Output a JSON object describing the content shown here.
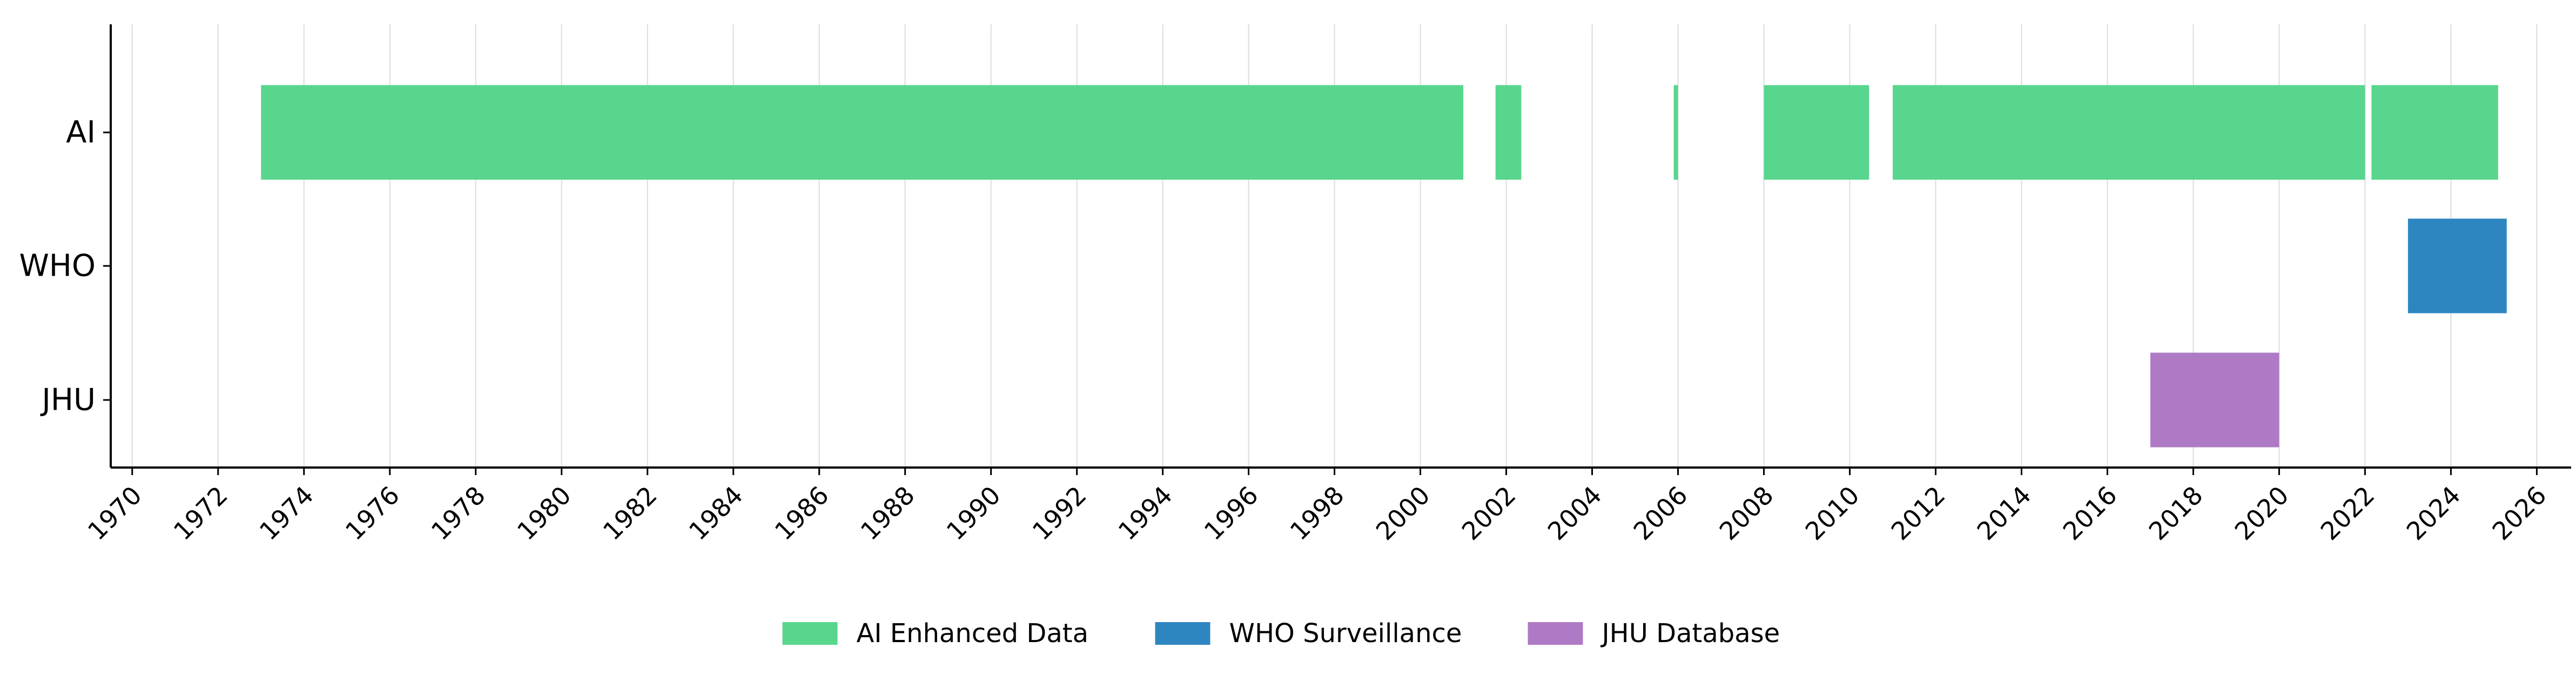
{
  "chart_data": {
    "type": "bar",
    "orientation": "horizontal-timeline",
    "categories": [
      "AI",
      "WHO",
      "JHU"
    ],
    "xlim": [
      1969.5,
      2026.8
    ],
    "x_ticks": [
      1970,
      1972,
      1974,
      1976,
      1978,
      1980,
      1982,
      1984,
      1986,
      1988,
      1990,
      1992,
      1994,
      1996,
      1998,
      2000,
      2002,
      2004,
      2006,
      2008,
      2010,
      2012,
      2014,
      2016,
      2018,
      2020,
      2022,
      2024,
      2026
    ],
    "grid": "vertical",
    "legend_position": "bottom-center",
    "series": [
      {
        "name": "AI Enhanced Data",
        "color": "#58d68d",
        "category": "AI",
        "intervals": [
          [
            1973.0,
            2001.0
          ],
          [
            2001.75,
            2002.35
          ],
          [
            2005.9,
            2006.0
          ],
          [
            2008.0,
            2010.45
          ],
          [
            2011.0,
            2022.0
          ],
          [
            2022.15,
            2025.1
          ]
        ]
      },
      {
        "name": "WHO Surveillance",
        "color": "#2e86c1",
        "category": "WHO",
        "intervals": [
          [
            2023.0,
            2025.3
          ]
        ]
      },
      {
        "name": "JHU Database",
        "color": "#af7ac5",
        "category": "JHU",
        "intervals": [
          [
            2017.0,
            2020.0
          ]
        ]
      }
    ]
  }
}
